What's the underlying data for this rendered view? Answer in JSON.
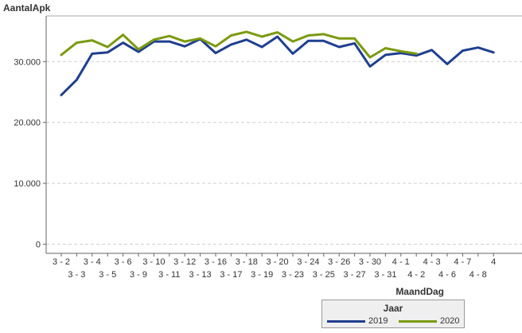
{
  "chart_data": {
    "type": "line",
    "ylabel": "AantalApk",
    "xlabel": "MaandDag",
    "ylim": [
      -1500,
      37500
    ],
    "yticks": [
      0,
      10000,
      20000,
      30000
    ],
    "ytick_labels": [
      "0",
      "10.000",
      "20.000",
      "30.000"
    ],
    "grid": true,
    "legend_position": "bottom-right",
    "legend_title": "Jaar",
    "categories": [
      "3 - 2",
      "3 - 3",
      "3 - 4",
      "3 - 5",
      "3 - 6",
      "3 - 9",
      "3 - 10",
      "3 - 11",
      "3 - 12",
      "3 - 13",
      "3 - 16",
      "3 - 17",
      "3 - 18",
      "3 - 19",
      "3 - 20",
      "3 - 23",
      "3 - 24",
      "3 - 25",
      "3 - 26",
      "3 - 27",
      "3 - 30",
      "3 - 31",
      "4 - 1",
      "4 - 2",
      "4 - 3",
      "4 - 6",
      "4 - 7",
      "4 - 8",
      "4"
    ],
    "series": [
      {
        "name": "2019",
        "color": "#1f3f8f",
        "values": [
          24500,
          27000,
          31300,
          31500,
          33100,
          31600,
          33300,
          33300,
          32500,
          33700,
          31400,
          32800,
          33600,
          32400,
          34100,
          31300,
          33400,
          33400,
          32400,
          33000,
          29200,
          31100,
          31400,
          31000,
          31900,
          29600,
          31800,
          32300,
          31500
        ]
      },
      {
        "name": "2020",
        "color": "#7b9a10",
        "values": [
          31100,
          33100,
          33500,
          32400,
          34400,
          32000,
          33600,
          34200,
          33300,
          33800,
          32500,
          34300,
          34900,
          34100,
          34800,
          33300,
          34300,
          34500,
          33800,
          33800,
          30700,
          32200,
          31700,
          31300,
          null,
          null,
          null,
          null,
          null
        ]
      }
    ]
  }
}
